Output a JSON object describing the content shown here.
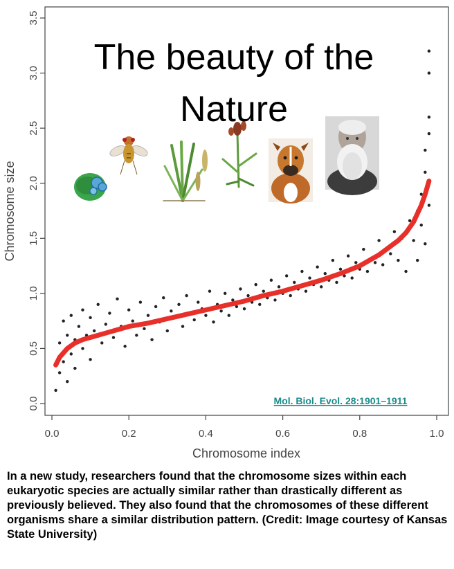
{
  "chart_data": {
    "type": "scatter",
    "title": "The beauty of the Nature",
    "xlabel": "Chromosome index",
    "ylabel": "Chromosome size",
    "xlim": [
      0.0,
      1.0
    ],
    "ylim": [
      0.0,
      3.5
    ],
    "xticks": [
      "0.0",
      "0.2",
      "0.4",
      "0.6",
      "0.8",
      "1.0"
    ],
    "yticks": [
      "0.0",
      "0.5",
      "1.0",
      "1.5",
      "2.0",
      "2.5",
      "3.0",
      "3.5"
    ],
    "grid": false,
    "legend": "none",
    "series": [
      {
        "style": "points",
        "color": "#222222",
        "x": [
          0.01,
          0.02,
          0.02,
          0.03,
          0.03,
          0.04,
          0.04,
          0.05,
          0.05,
          0.06,
          0.06,
          0.07,
          0.08,
          0.08,
          0.09,
          0.1,
          0.1,
          0.11,
          0.12,
          0.13,
          0.14,
          0.15,
          0.16,
          0.17,
          0.18,
          0.19,
          0.2,
          0.21,
          0.22,
          0.23,
          0.24,
          0.25,
          0.26,
          0.27,
          0.28,
          0.29,
          0.3,
          0.31,
          0.32,
          0.33,
          0.34,
          0.35,
          0.36,
          0.37,
          0.38,
          0.39,
          0.4,
          0.41,
          0.42,
          0.43,
          0.44,
          0.45,
          0.46,
          0.47,
          0.48,
          0.49,
          0.5,
          0.51,
          0.52,
          0.53,
          0.54,
          0.55,
          0.56,
          0.57,
          0.58,
          0.59,
          0.6,
          0.61,
          0.62,
          0.63,
          0.64,
          0.65,
          0.66,
          0.67,
          0.68,
          0.69,
          0.7,
          0.71,
          0.72,
          0.73,
          0.74,
          0.75,
          0.76,
          0.77,
          0.78,
          0.79,
          0.8,
          0.81,
          0.82,
          0.83,
          0.84,
          0.85,
          0.86,
          0.87,
          0.88,
          0.89,
          0.9,
          0.91,
          0.92,
          0.93,
          0.94,
          0.95,
          0.95,
          0.96,
          0.96,
          0.97,
          0.97,
          0.97,
          0.98,
          0.98,
          0.98,
          0.98,
          0.98
        ],
        "y": [
          0.12,
          0.55,
          0.28,
          0.75,
          0.38,
          0.62,
          0.2,
          0.8,
          0.45,
          0.58,
          0.32,
          0.7,
          0.5,
          0.85,
          0.62,
          0.4,
          0.78,
          0.66,
          0.9,
          0.55,
          0.72,
          0.82,
          0.6,
          0.95,
          0.7,
          0.52,
          0.85,
          0.75,
          0.62,
          0.92,
          0.68,
          0.8,
          0.58,
          0.88,
          0.74,
          0.96,
          0.66,
          0.84,
          0.78,
          0.9,
          0.7,
          0.98,
          0.82,
          0.76,
          0.92,
          0.86,
          0.8,
          1.02,
          0.74,
          0.9,
          0.84,
          1.0,
          0.8,
          0.94,
          0.88,
          1.04,
          0.86,
          0.98,
          0.92,
          1.08,
          0.9,
          1.02,
          0.96,
          1.12,
          0.94,
          1.06,
          1.0,
          1.16,
          0.98,
          1.1,
          1.04,
          1.2,
          1.02,
          1.14,
          1.08,
          1.24,
          1.06,
          1.18,
          1.12,
          1.3,
          1.1,
          1.22,
          1.16,
          1.34,
          1.14,
          1.28,
          1.22,
          1.4,
          1.2,
          1.32,
          1.28,
          1.48,
          1.26,
          1.4,
          1.36,
          1.56,
          1.3,
          1.5,
          1.2,
          1.66,
          1.48,
          1.75,
          1.3,
          1.9,
          1.62,
          2.1,
          1.45,
          2.3,
          1.8,
          2.6,
          2.45,
          3.0,
          3.2
        ]
      },
      {
        "style": "line",
        "color": "#e8302a",
        "x": [
          0.01,
          0.02,
          0.04,
          0.06,
          0.08,
          0.1,
          0.15,
          0.2,
          0.25,
          0.3,
          0.35,
          0.4,
          0.45,
          0.5,
          0.55,
          0.6,
          0.65,
          0.7,
          0.75,
          0.8,
          0.85,
          0.9,
          0.92,
          0.94,
          0.96,
          0.97,
          0.98
        ],
        "y": [
          0.35,
          0.42,
          0.5,
          0.55,
          0.58,
          0.6,
          0.65,
          0.7,
          0.73,
          0.77,
          0.81,
          0.85,
          0.89,
          0.93,
          0.98,
          1.02,
          1.07,
          1.12,
          1.18,
          1.25,
          1.35,
          1.48,
          1.55,
          1.65,
          1.8,
          1.9,
          2.02
        ]
      }
    ],
    "annotations": {
      "citation": "Mol. Biol. Evol. 28:1901–1911"
    }
  },
  "caption": "In a new study, researchers found that the chromosome sizes within each eukaryotic species are actually similar rather than drastically different as previously believed. They also found that the chromosomes of these different organisms share a similar distribution pattern. (Credit: Image courtesy of Kansas State University)",
  "decorations": {
    "images": [
      "alga-icon",
      "fruit-fly-icon",
      "grass-plant-icon",
      "sorghum-plant-icon",
      "boxer-dog-icon",
      "darwin-portrait-icon"
    ]
  }
}
